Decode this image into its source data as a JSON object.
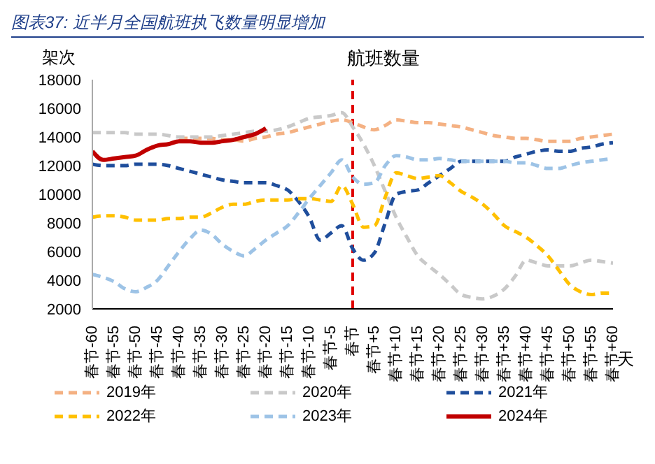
{
  "chart_data": {
    "type": "line",
    "title": "图表37: 近半月全国航班执飞数量明显增加",
    "subtitle": "航班数量",
    "ylabel": "架次",
    "xlabel": "天",
    "categories": [
      "春节-60",
      null,
      "春节-55",
      null,
      "春节-50",
      null,
      "春节-45",
      null,
      "春节-40",
      null,
      "春节-35",
      null,
      "春节-30",
      null,
      "春节-25",
      null,
      "春节-20",
      null,
      "春节-15",
      null,
      "春节-10",
      null,
      "春节-5",
      null,
      "春节",
      null,
      "春节+5",
      null,
      "春节+10",
      null,
      "春节+15",
      null,
      "春节+20",
      null,
      "春节+25",
      null,
      "春节+30",
      null,
      "春节+35",
      null,
      "春节+40",
      null,
      "春节+45",
      null,
      "春节+50",
      null,
      "春节+55",
      null,
      "春节+60"
    ],
    "ylim": [
      2000,
      18000
    ],
    "yticks": [
      2000,
      4000,
      6000,
      8000,
      10000,
      12000,
      14000,
      16000,
      18000
    ],
    "grid": false,
    "legend": "bottom",
    "marker": "none",
    "ref_lines": [
      {
        "axis": "x",
        "value": "春节",
        "color": "#e00000",
        "line_style": "dashed"
      }
    ],
    "series": [
      {
        "name": "2019年",
        "color": "#f4b183",
        "line_style": "dashed",
        "values": [
          null,
          null,
          null,
          null,
          null,
          null,
          null,
          null,
          13900,
          13900,
          13900,
          13900,
          13800,
          13800,
          13700,
          13900,
          14000,
          14200,
          14300,
          14500,
          14700,
          14900,
          15100,
          15200,
          15000,
          14700,
          14500,
          14800,
          15200,
          15100,
          15000,
          15000,
          14900,
          14800,
          14700,
          14500,
          14300,
          14100,
          14000,
          13900,
          13900,
          13800,
          13700,
          13700,
          13700,
          13900,
          14000,
          14100,
          14200
        ]
      },
      {
        "name": "2020年",
        "color": "#c9c9c9",
        "line_style": "dashed",
        "values": [
          14300,
          14300,
          14300,
          14300,
          14200,
          14200,
          14200,
          14100,
          14000,
          14000,
          14000,
          14000,
          14100,
          14200,
          14300,
          14400,
          14400,
          14500,
          14700,
          15000,
          15300,
          15400,
          15500,
          15700,
          14700,
          13500,
          12000,
          10200,
          8400,
          7000,
          5700,
          5000,
          4400,
          3700,
          3000,
          2800,
          2700,
          2900,
          3400,
          4300,
          5400,
          5200,
          5000,
          5000,
          5000,
          5200,
          5400,
          5300,
          5200
        ]
      },
      {
        "name": "2021年",
        "color": "#1f4e9c",
        "line_style": "dashed",
        "values": [
          12100,
          12000,
          12000,
          12000,
          12100,
          12100,
          12100,
          12000,
          11800,
          11600,
          11400,
          11200,
          11000,
          10900,
          10800,
          10800,
          10800,
          10600,
          10300,
          9500,
          8400,
          6800,
          7300,
          7800,
          6200,
          5400,
          5900,
          8000,
          10000,
          10200,
          10300,
          10800,
          11300,
          11800,
          12300,
          12300,
          12300,
          12300,
          12300,
          12600,
          12800,
          13000,
          13100,
          13000,
          13000,
          13200,
          13300,
          13500,
          13600
        ]
      },
      {
        "name": "2022年",
        "color": "#ffc000",
        "line_style": "dashed",
        "values": [
          8400,
          8500,
          8500,
          8400,
          8200,
          8200,
          8200,
          8300,
          8300,
          8400,
          8400,
          8700,
          9100,
          9300,
          9300,
          9500,
          9600,
          9600,
          9600,
          9700,
          9700,
          9600,
          9500,
          10600,
          9300,
          7700,
          7800,
          9800,
          11500,
          11300,
          11100,
          11200,
          11300,
          10800,
          10200,
          9800,
          9300,
          8600,
          7800,
          7400,
          7000,
          6400,
          5700,
          4700,
          3700,
          3200,
          3000,
          3100,
          3100
        ]
      },
      {
        "name": "2023年",
        "color": "#9dc3e6",
        "line_style": "dashed",
        "values": [
          4400,
          4200,
          3900,
          3400,
          3200,
          3500,
          4000,
          5000,
          6000,
          6900,
          7500,
          7200,
          6500,
          6000,
          5700,
          6200,
          6800,
          7300,
          7800,
          8700,
          9700,
          10600,
          11500,
          12400,
          11200,
          10700,
          10800,
          12000,
          12700,
          12600,
          12400,
          12400,
          12500,
          12400,
          12300,
          12300,
          12300,
          12300,
          12300,
          12200,
          12200,
          12000,
          11800,
          11800,
          12000,
          12200,
          12300,
          12400,
          12500
        ]
      },
      {
        "name": "2024年",
        "color": "#c00000",
        "line_style": "solid",
        "values": [
          13000,
          12400,
          12500,
          12600,
          12700,
          13100,
          13400,
          13500,
          13700,
          13700,
          13600,
          13600,
          13700,
          13800,
          14000,
          14200,
          14600,
          null,
          null,
          null,
          null,
          null,
          null,
          null,
          null,
          null,
          null,
          null,
          null,
          null,
          null,
          null,
          null,
          null,
          null,
          null,
          null,
          null,
          null,
          null,
          null,
          null,
          null,
          null,
          null,
          null,
          null,
          null,
          null
        ]
      }
    ]
  }
}
